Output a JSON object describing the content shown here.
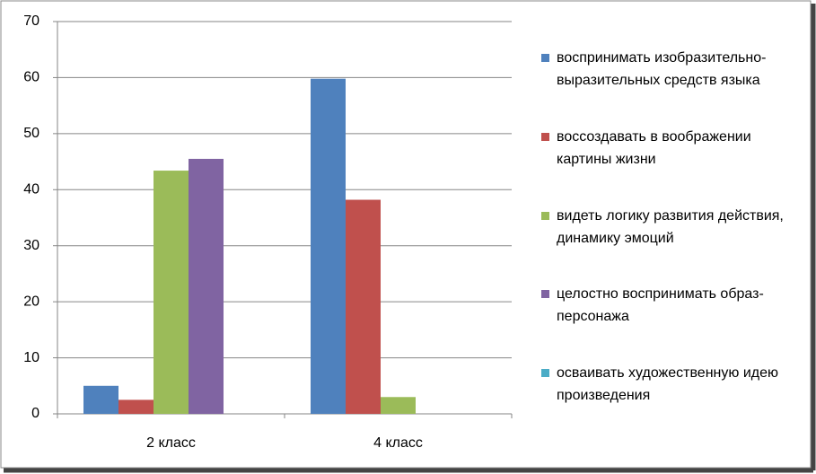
{
  "chart_data": {
    "type": "bar",
    "categories": [
      "2 класс",
      "4 класс"
    ],
    "series": [
      {
        "name": "воспринимать изобразительно-выразительных средств языка",
        "color": "#4f81bd",
        "values": [
          5,
          59.8
        ]
      },
      {
        "name": "воссоздавать в воображении картины жизни",
        "color": "#c0504d",
        "values": [
          2.5,
          38.2
        ]
      },
      {
        "name": "видеть логику развития действия, динамику эмоций",
        "color": "#9bbb59",
        "values": [
          43.4,
          3
        ]
      },
      {
        "name": "целостно воспринимать образ-персонажа",
        "color": "#8064a2",
        "values": [
          45.5,
          0
        ]
      },
      {
        "name": "осваивать художественную идею произведения",
        "color": "#4bacc6",
        "values": [
          0,
          0
        ]
      }
    ],
    "ylim": [
      0,
      70
    ],
    "yticks": [
      0,
      10,
      20,
      30,
      40,
      50,
      60,
      70
    ],
    "grid": true,
    "legend": "right"
  }
}
